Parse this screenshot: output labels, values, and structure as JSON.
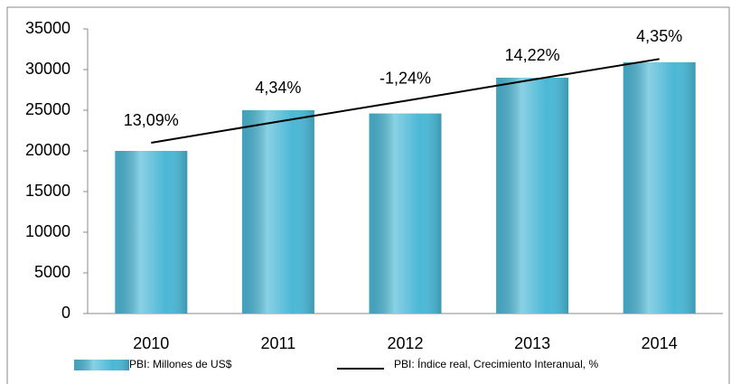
{
  "chart_data": {
    "type": "bar",
    "categories": [
      "2010",
      "2011",
      "2012",
      "2013",
      "2014"
    ],
    "series": [
      {
        "name": "PBI: Millones de US$",
        "color": "#4bb8d6",
        "values": [
          20000,
          25000,
          24600,
          29000,
          30900
        ]
      },
      {
        "name": "PBI: Índice real, Crecimiento Interanual, %",
        "type": "line",
        "color": "#000000",
        "values": [
          21000,
          23600,
          26150,
          28750,
          31300
        ]
      }
    ],
    "annotations": [
      "13,09%",
      "4,34%",
      "-1,24%",
      "14,22%",
      "4,35%"
    ],
    "ylim": [
      0,
      35000
    ],
    "yticks": [
      0,
      5000,
      10000,
      15000,
      20000,
      25000,
      30000,
      35000
    ]
  }
}
